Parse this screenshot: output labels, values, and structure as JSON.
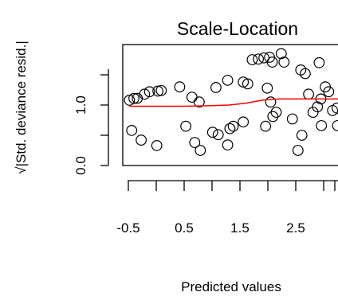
{
  "chart_data": {
    "type": "scatter",
    "title": "Scale-Location",
    "xlabel": "Predicted values",
    "ylabel": "√|Std. deviance resid.|",
    "x_ticks": [
      -0.5,
      0.5,
      1.5,
      2.5
    ],
    "x_tick_labels": [
      "-0.5",
      "0.5",
      "1.5",
      "2.5"
    ],
    "y_ticks": [
      0.0,
      1.0
    ],
    "y_tick_labels": [
      "0.0",
      "1.0"
    ],
    "xlim": [
      -0.6,
      3.4
    ],
    "ylim": [
      0.0,
      2.0
    ],
    "x_minor_ticks": [
      -0.5,
      0.0,
      0.5,
      1.0,
      1.5,
      2.0,
      2.5,
      3.0,
      3.2
    ],
    "grid": false,
    "point_color": "#000000",
    "smoother_color": "#ff0000",
    "points": [
      {
        "x": -0.48,
        "y": 1.08
      },
      {
        "x": -0.4,
        "y": 1.11
      },
      {
        "x": -0.34,
        "y": 1.11
      },
      {
        "x": -0.21,
        "y": 1.18
      },
      {
        "x": -0.12,
        "y": 1.22
      },
      {
        "x": 0.03,
        "y": 1.23
      },
      {
        "x": 0.09,
        "y": 1.24
      },
      {
        "x": 0.42,
        "y": 1.3
      },
      {
        "x": 0.64,
        "y": 1.13
      },
      {
        "x": 0.77,
        "y": 1.05
      },
      {
        "x": 1.07,
        "y": 1.29
      },
      {
        "x": 1.28,
        "y": 1.41
      },
      {
        "x": 1.56,
        "y": 1.38
      },
      {
        "x": 1.64,
        "y": 1.35
      },
      {
        "x": 1.72,
        "y": 1.75
      },
      {
        "x": 1.83,
        "y": 1.76
      },
      {
        "x": 1.93,
        "y": 1.78
      },
      {
        "x": 2.03,
        "y": 1.79
      },
      {
        "x": 2.08,
        "y": 1.71
      },
      {
        "x": 2.24,
        "y": 1.85
      },
      {
        "x": 2.29,
        "y": 1.71
      },
      {
        "x": 2.59,
        "y": 1.58
      },
      {
        "x": 2.67,
        "y": 1.52
      },
      {
        "x": 2.92,
        "y": 1.7
      },
      {
        "x": 1.99,
        "y": 1.28
      },
      {
        "x": 2.73,
        "y": 1.18
      },
      {
        "x": 3.03,
        "y": 1.3
      },
      {
        "x": 3.09,
        "y": 1.22
      },
      {
        "x": 2.95,
        "y": 1.1
      },
      {
        "x": 2.89,
        "y": 0.97
      },
      {
        "x": 2.81,
        "y": 0.88
      },
      {
        "x": 3.16,
        "y": 0.91
      },
      {
        "x": 2.05,
        "y": 1.05
      },
      {
        "x": 2.15,
        "y": 0.88
      },
      {
        "x": 2.09,
        "y": 0.81
      },
      {
        "x": 2.44,
        "y": 0.77
      },
      {
        "x": 1.96,
        "y": 0.65
      },
      {
        "x": 1.38,
        "y": 0.65
      },
      {
        "x": 1.32,
        "y": 0.61
      },
      {
        "x": 0.53,
        "y": 0.65
      },
      {
        "x": 0.69,
        "y": 0.38
      },
      {
        "x": 0.79,
        "y": 0.25
      },
      {
        "x": 1.01,
        "y": 0.55
      },
      {
        "x": 1.11,
        "y": 0.51
      },
      {
        "x": 1.28,
        "y": 0.34
      },
      {
        "x": 1.56,
        "y": 0.72
      },
      {
        "x": -0.44,
        "y": 0.58
      },
      {
        "x": -0.27,
        "y": 0.42
      },
      {
        "x": 0.01,
        "y": 0.33
      },
      {
        "x": 2.54,
        "y": 0.25
      },
      {
        "x": 2.61,
        "y": 0.5
      },
      {
        "x": 2.96,
        "y": 0.66
      },
      {
        "x": 3.25,
        "y": 0.66
      },
      {
        "x": 3.24,
        "y": 0.95
      }
    ],
    "smoother": [
      {
        "x": -0.48,
        "y": 0.98
      },
      {
        "x": 0.0,
        "y": 0.98
      },
      {
        "x": 0.5,
        "y": 0.98
      },
      {
        "x": 1.0,
        "y": 0.99
      },
      {
        "x": 1.3,
        "y": 1.0
      },
      {
        "x": 1.6,
        "y": 1.03
      },
      {
        "x": 1.9,
        "y": 1.08
      },
      {
        "x": 2.2,
        "y": 1.1
      },
      {
        "x": 2.6,
        "y": 1.1
      },
      {
        "x": 3.0,
        "y": 1.1
      },
      {
        "x": 3.26,
        "y": 1.1
      }
    ]
  }
}
